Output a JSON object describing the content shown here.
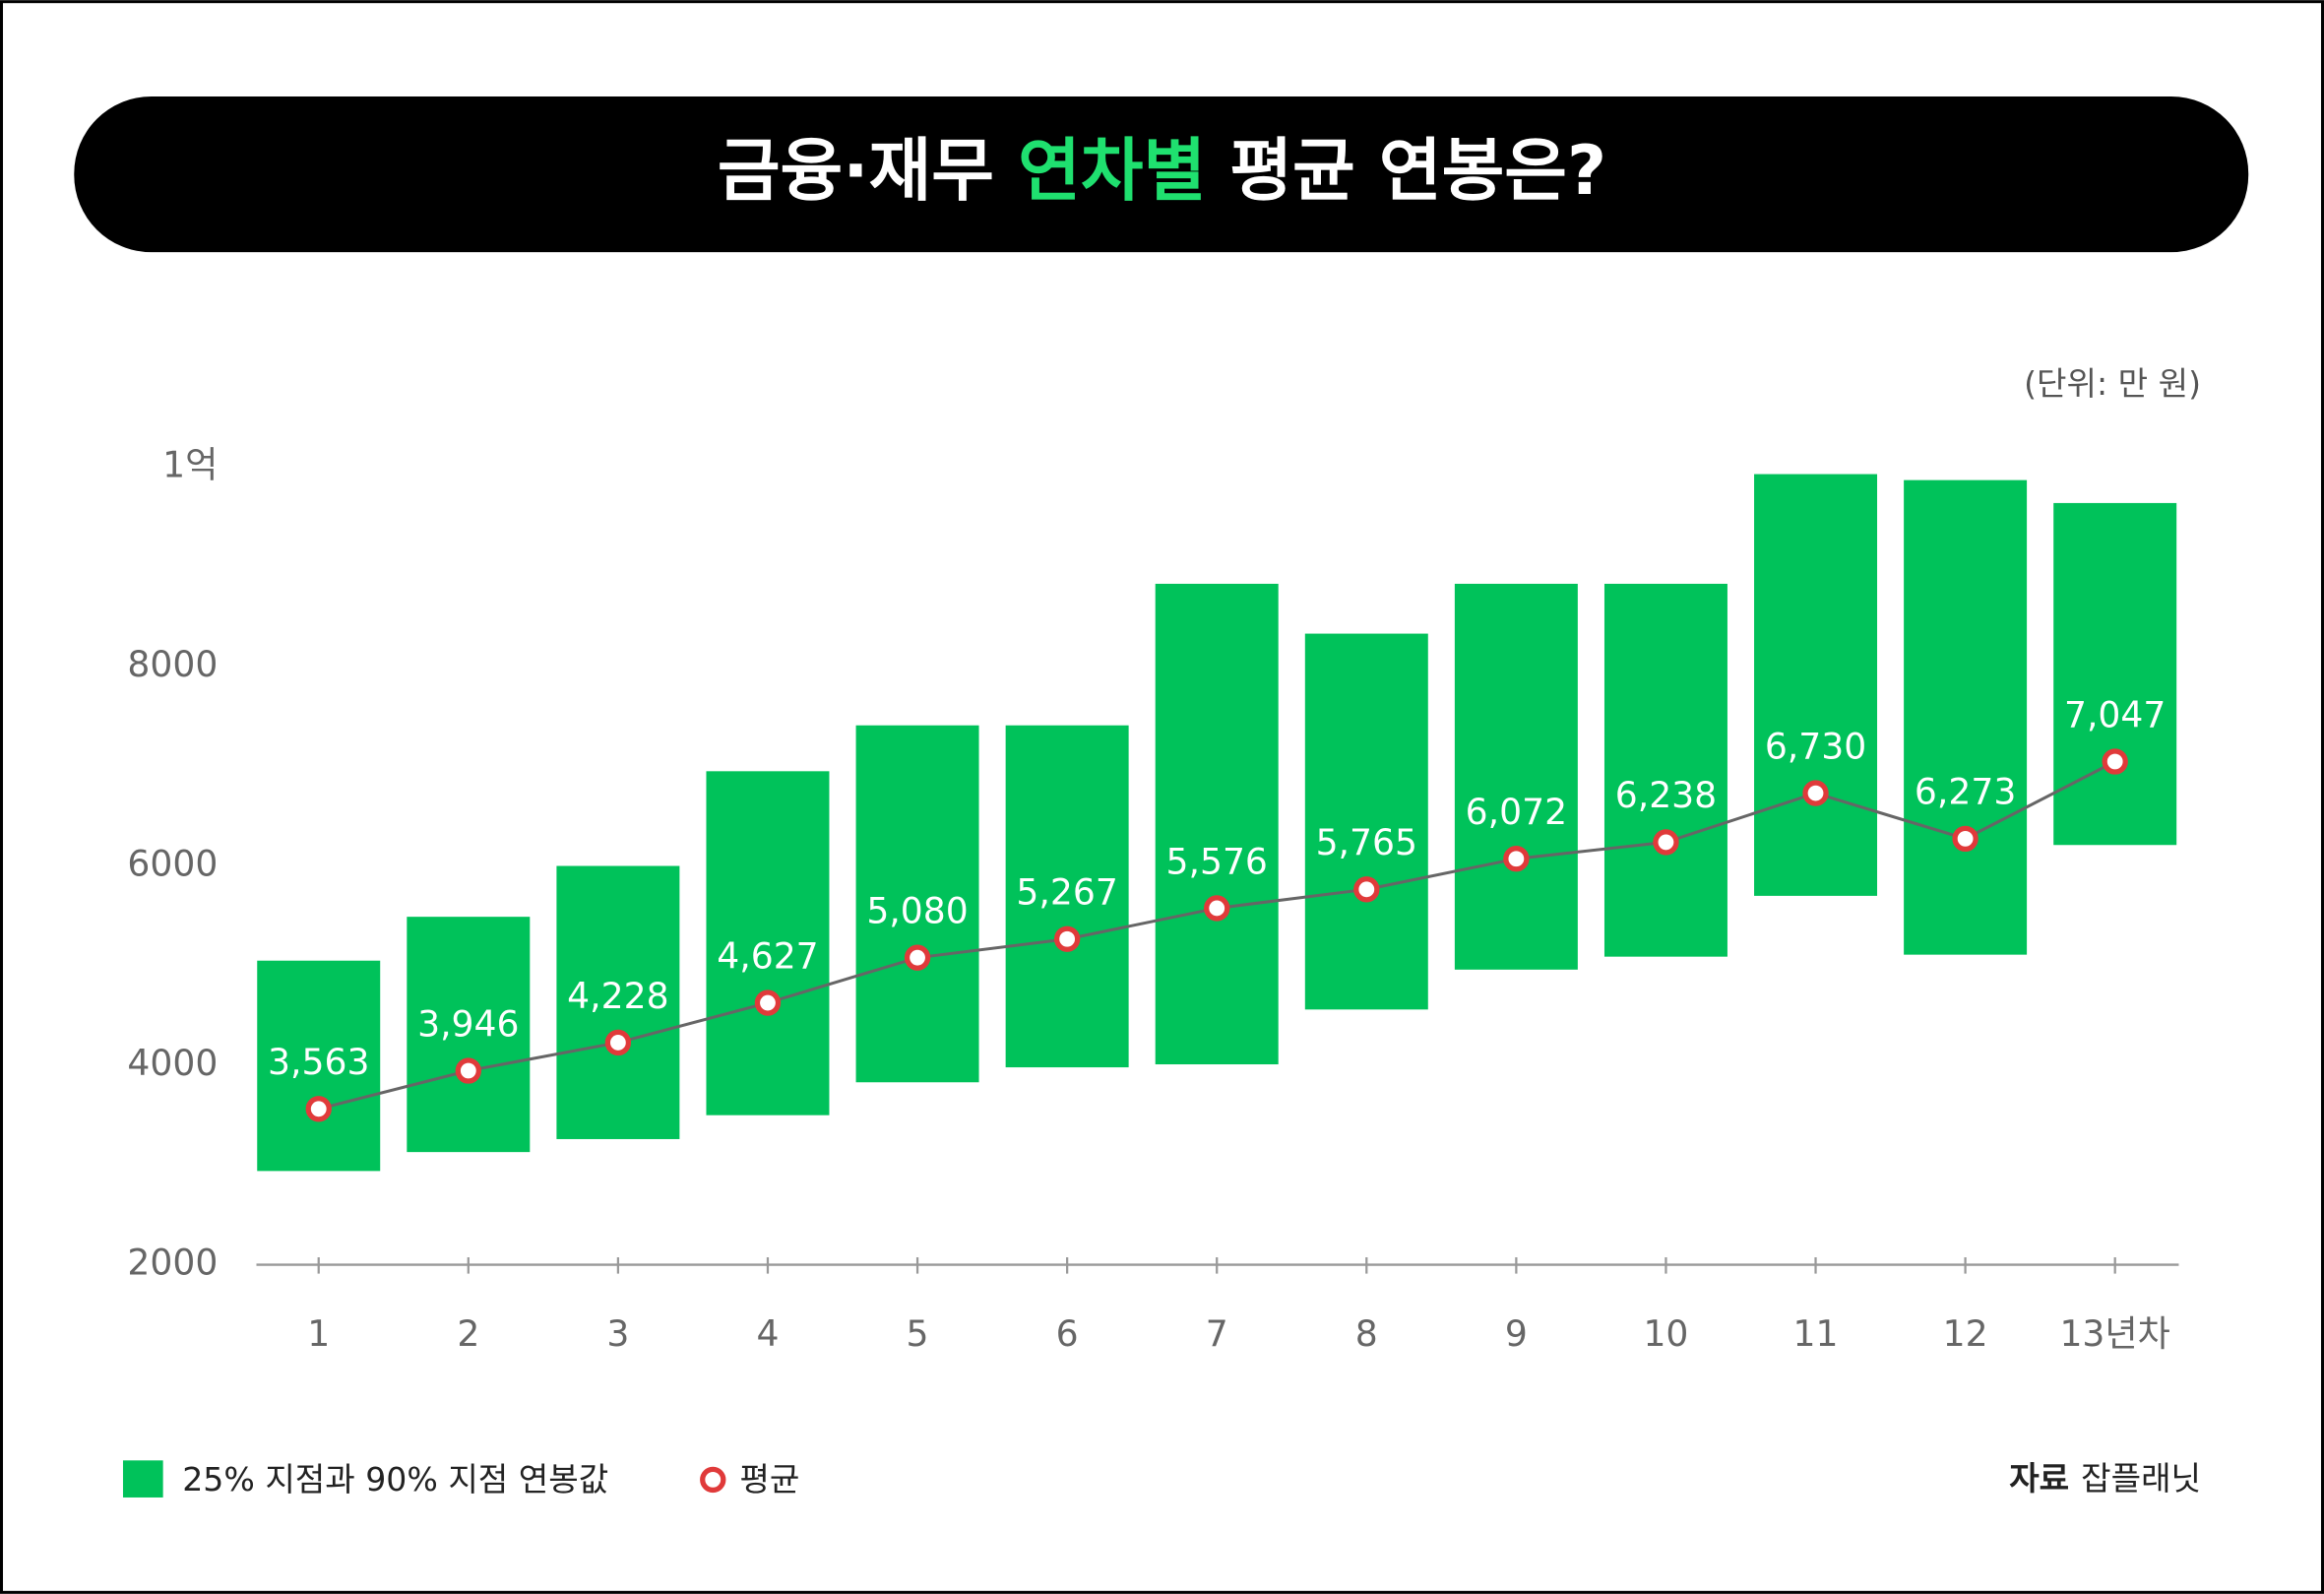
{
  "chart_data": {
    "type": "range-bar-line",
    "title": [
      "금융·재무 ",
      "연차별",
      " 평균 연봉은?"
    ],
    "unit_label": "(단위: 만 원)",
    "categories": [
      "1",
      "2",
      "3",
      "4",
      "5",
      "6",
      "7",
      "8",
      "9",
      "10",
      "11",
      "12",
      "13년차"
    ],
    "series": [
      {
        "name": "25% 지점과 90% 지점 연봉값",
        "color": "#00c25a",
        "low": [
          2940,
          3130,
          3260,
          3500,
          3830,
          3980,
          4010,
          4560,
          4960,
          5090,
          5700,
          5110,
          6210
        ],
        "high": [
          5050,
          5490,
          6000,
          6950,
          7410,
          7410,
          8830,
          8330,
          8830,
          8830,
          9930,
          9870,
          9640
        ]
      },
      {
        "name": "평균",
        "color": "#e03a3a",
        "values": [
          3563,
          3946,
          4228,
          4627,
          5080,
          5267,
          5576,
          5765,
          6072,
          6238,
          6730,
          6273,
          7047
        ],
        "value_labels": [
          "3,563",
          "3,946",
          "4,228",
          "4,627",
          "5,080",
          "5,267",
          "5,576",
          "5,765",
          "6,072",
          "6,238",
          "6,730",
          "6,273",
          "7,047"
        ]
      }
    ],
    "ylim": [
      2000,
      10000
    ],
    "yticks": [
      2000,
      4000,
      6000,
      8000,
      {
        "value": 10000,
        "label": "1억"
      }
    ],
    "source": {
      "label": "자료",
      "name": "잡플래닛"
    }
  }
}
